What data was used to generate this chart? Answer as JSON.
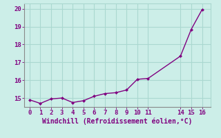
{
  "x": [
    0,
    1,
    2,
    3,
    4,
    5,
    6,
    7,
    8,
    9,
    10,
    11,
    14,
    15,
    16
  ],
  "y": [
    14.9,
    14.7,
    14.95,
    15.0,
    14.75,
    14.85,
    15.1,
    15.25,
    15.3,
    15.45,
    16.05,
    16.1,
    17.35,
    18.85,
    19.95
  ],
  "line_color": "#800080",
  "marker_color": "#800080",
  "bg_color": "#cceee8",
  "grid_color": "#aad8d0",
  "xlabel": "Windchill (Refroidissement éolien,°C)",
  "xlabel_color": "#800080",
  "tick_color": "#800080",
  "xlim": [
    -0.5,
    16.8
  ],
  "ylim": [
    14.5,
    20.3
  ],
  "yticks": [
    15,
    16,
    17,
    18,
    19,
    20
  ],
  "xticks": [
    0,
    1,
    2,
    3,
    4,
    5,
    6,
    7,
    8,
    9,
    10,
    11,
    14,
    15,
    16
  ],
  "marker": "D",
  "marker_size": 2.5,
  "linewidth": 1.0,
  "tick_labelsize": 6.5,
  "xlabel_fontsize": 7.0
}
